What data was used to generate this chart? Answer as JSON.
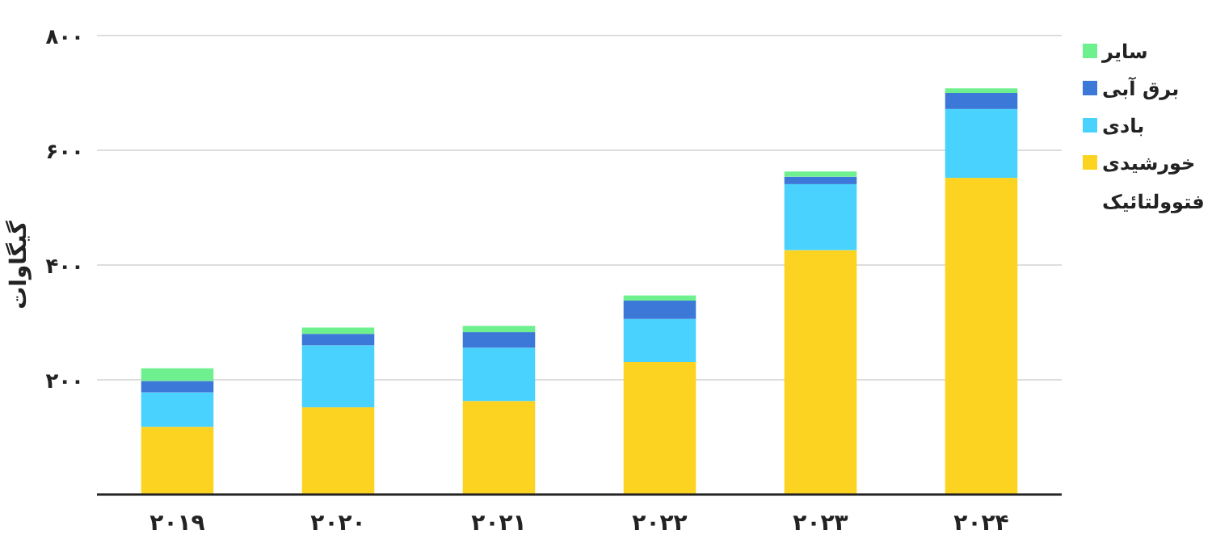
{
  "chart_data": {
    "type": "bar",
    "stacked": true,
    "ylabel": "گیگاوات",
    "categories": [
      "۲۰۱۹",
      "۲۰۲۰",
      "۲۰۲۱",
      "۲۰۲۲",
      "۲۰۲۳",
      "۲۰۲۴"
    ],
    "series": [
      {
        "name": "خورشیدی فتوولتائیک",
        "color": "#fcd321",
        "values": [
          118,
          152,
          163,
          231,
          426,
          552
        ]
      },
      {
        "name": "بادی",
        "color": "#48d2fd",
        "values": [
          60,
          108,
          93,
          75,
          115,
          120
        ]
      },
      {
        "name": "برق آبی",
        "color": "#3c78d8",
        "values": [
          20,
          20,
          27,
          32,
          13,
          28
        ]
      },
      {
        "name": "سایر",
        "color": "#6ef08f",
        "values": [
          22,
          11,
          11,
          9,
          9,
          8
        ]
      }
    ],
    "ylim": [
      0,
      800
    ],
    "yticks": [
      {
        "value": 200,
        "label": "۲۰۰"
      },
      {
        "value": 400,
        "label": "۴۰۰"
      },
      {
        "value": 600,
        "label": "۶۰۰"
      },
      {
        "value": 800,
        "label": "۸۰۰"
      }
    ],
    "grid": "y",
    "legend": "right"
  }
}
